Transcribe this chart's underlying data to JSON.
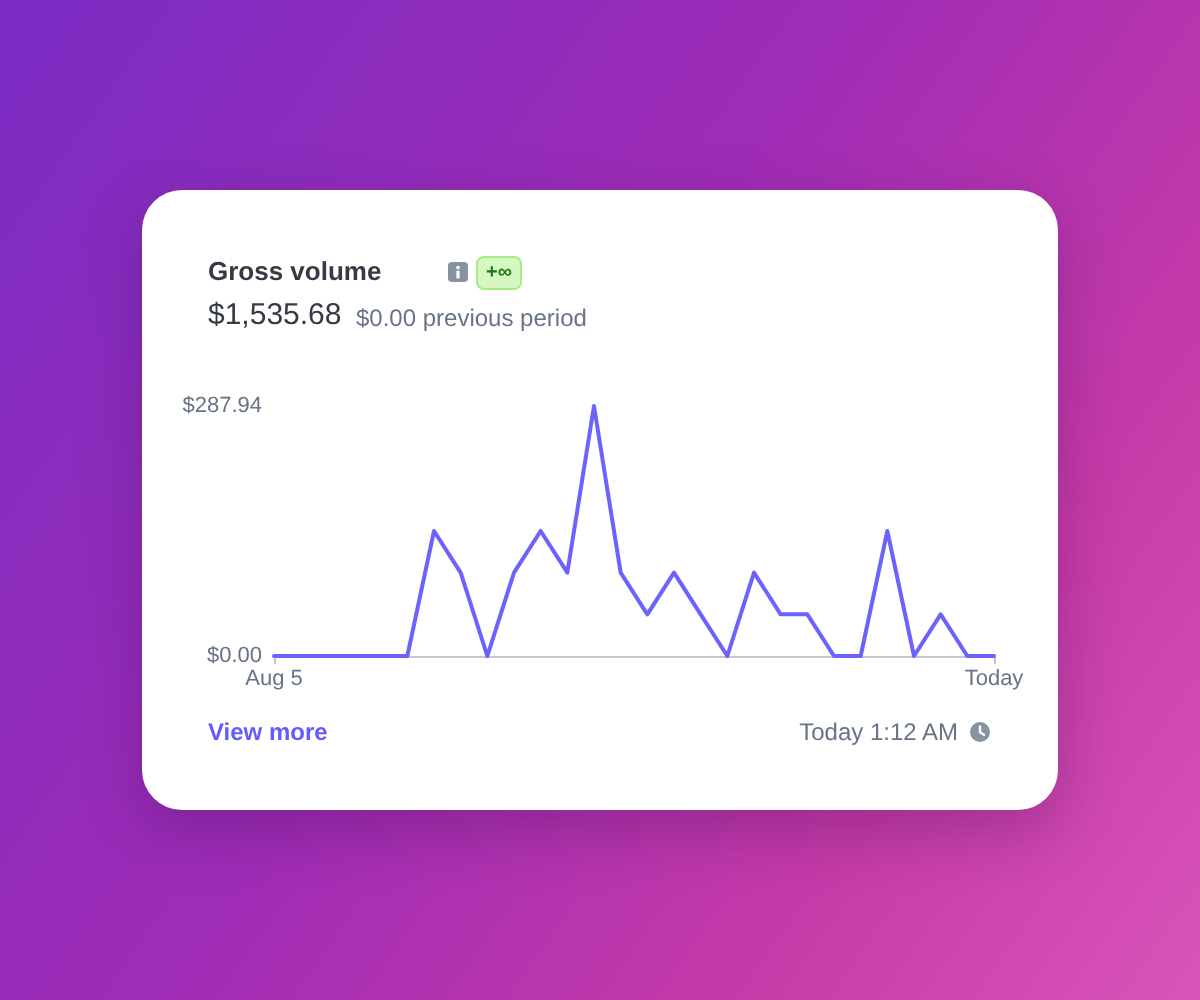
{
  "chart_data": {
    "type": "line",
    "title": "Gross volume",
    "subtitle": "$1,535.68",
    "annotations": [
      "+∞",
      "$0.00 previous period",
      "View more",
      "Today 1:12 AM"
    ],
    "categories": [
      "Aug 5",
      null,
      null,
      null,
      null,
      null,
      null,
      null,
      null,
      null,
      null,
      null,
      null,
      null,
      null,
      null,
      null,
      null,
      null,
      null,
      null,
      null,
      null,
      null,
      null,
      null,
      null,
      "Today"
    ],
    "series": [
      {
        "color": "#6c63ff",
        "values": [
          0,
          0,
          0,
          0,
          0,
          0,
          144,
          96,
          0,
          96,
          144,
          96,
          287.94,
          96,
          48,
          96,
          48,
          0,
          96,
          48,
          48,
          0,
          0,
          144,
          0,
          48,
          0,
          0
        ]
      }
    ],
    "ylim": [
      0,
      287.94
    ],
    "yticks": [
      {
        "value": 0,
        "label": "$0.00"
      },
      {
        "value": 287.94,
        "label": "$287.94"
      }
    ],
    "marker": "none"
  }
}
